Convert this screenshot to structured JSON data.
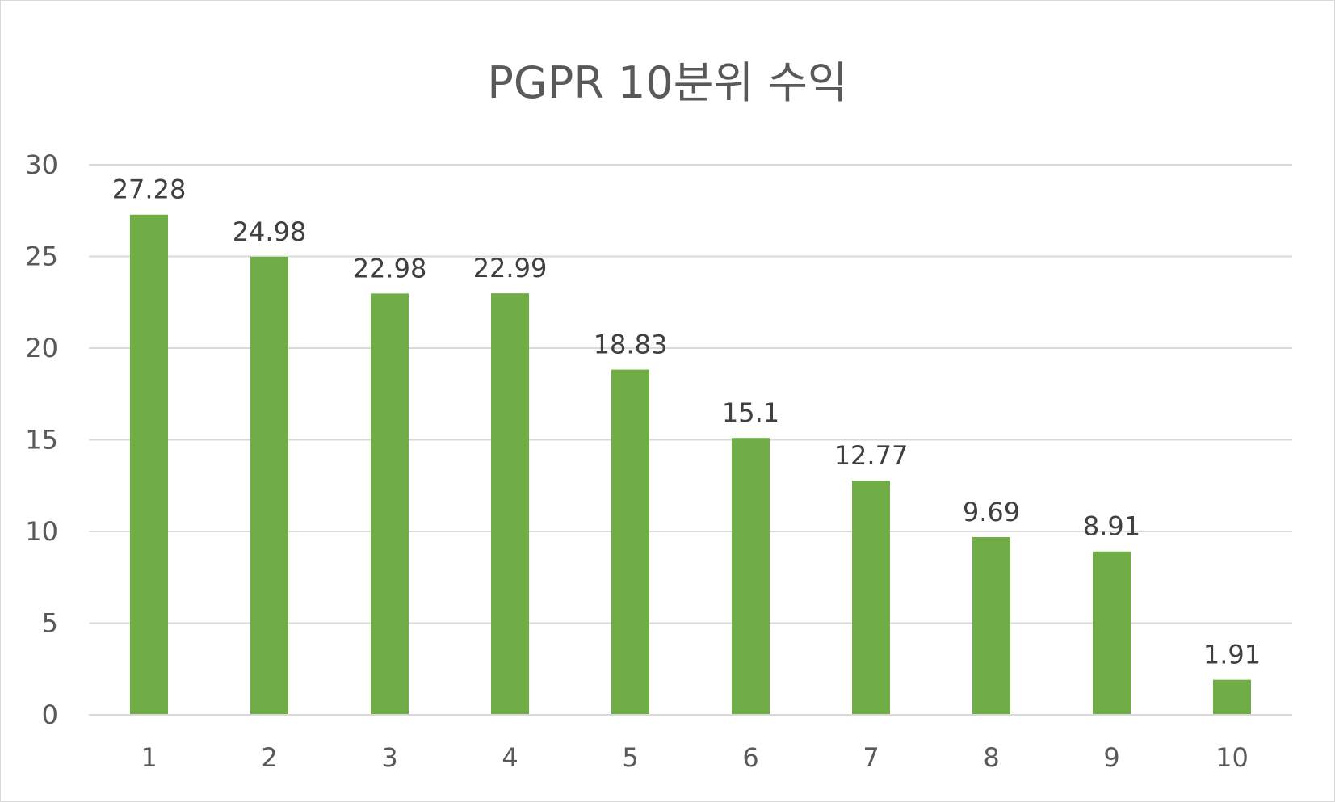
{
  "chart_data": {
    "type": "bar",
    "title": "PGPR 10분위 수익",
    "categories": [
      "1",
      "2",
      "3",
      "4",
      "5",
      "6",
      "7",
      "8",
      "9",
      "10"
    ],
    "values": [
      27.28,
      24.98,
      22.98,
      22.99,
      18.83,
      15.1,
      12.77,
      9.69,
      8.91,
      1.91
    ],
    "data_labels": [
      "27.28",
      "24.98",
      "22.98",
      "22.99",
      "18.83",
      "15.1",
      "12.77",
      "9.69",
      "8.91",
      "1.91"
    ],
    "y_ticks": [
      "0",
      "5",
      "10",
      "15",
      "20",
      "25",
      "30"
    ],
    "ylim": [
      0,
      30
    ],
    "grid": true,
    "legend": "none",
    "bar_color": "#70ad47",
    "grid_color": "#d9d9d9"
  }
}
